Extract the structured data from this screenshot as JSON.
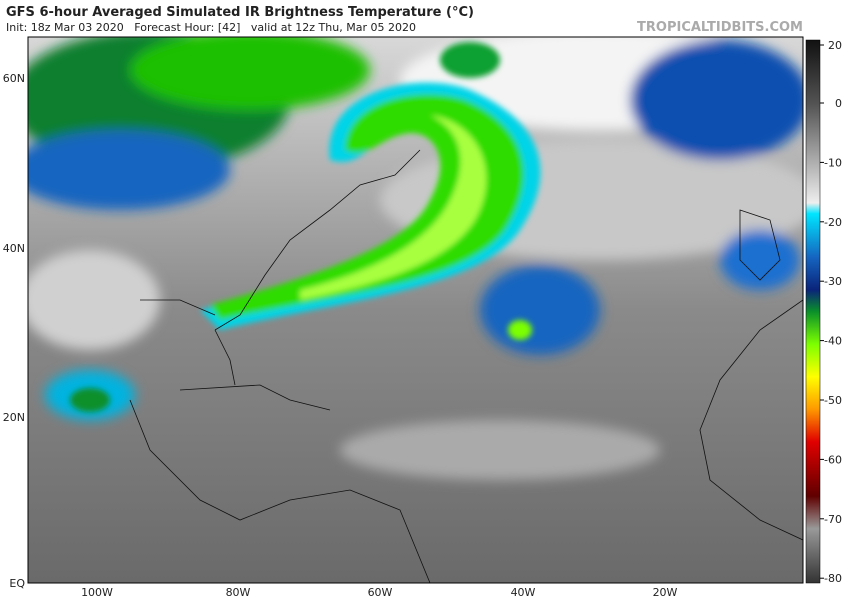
{
  "header": {
    "title": "GFS 6-hour Averaged Simulated IR Brightness Temperature (°C)",
    "subtitle": "Init: 18z Mar 03 2020   Forecast Hour: [42]   valid at 12z Thu, Mar 05 2020",
    "brand": "TROPICALTIDBITS.COM"
  },
  "map": {
    "lat_labels": [
      "60N",
      "40N",
      "20N",
      "EQ"
    ],
    "lon_labels": [
      "100W",
      "80W",
      "60W",
      "40W",
      "20W"
    ]
  },
  "colorbar": {
    "ticks": [
      20,
      0,
      -10,
      -20,
      -30,
      -40,
      -50,
      -60,
      -70,
      -80
    ]
  }
}
